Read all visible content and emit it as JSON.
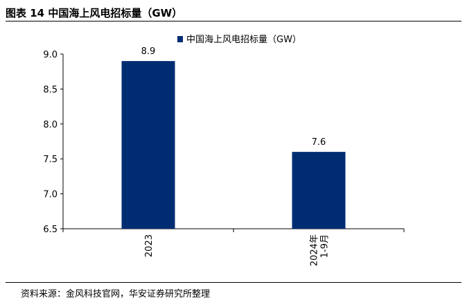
{
  "figure": {
    "title": "图表 14 中国海上风电招标量（GW）",
    "source": "资料来源：金风科技官网，华安证券研究所整理"
  },
  "chart_data": {
    "type": "bar",
    "categories": [
      "2023",
      "2024年\n1-9月"
    ],
    "series": [
      {
        "name": "中国海上风电招标量（GW）",
        "values": [
          8.9,
          7.6
        ],
        "color": "#002D72"
      }
    ],
    "data_labels": [
      "8.9",
      "7.6"
    ],
    "y_ticks": [
      "6.5",
      "7.0",
      "7.5",
      "8.0",
      "8.5",
      "9.0"
    ],
    "ylim": [
      6.5,
      9.0
    ],
    "xlabel": "",
    "ylabel": "",
    "legend_position": "top",
    "grid": false
  }
}
